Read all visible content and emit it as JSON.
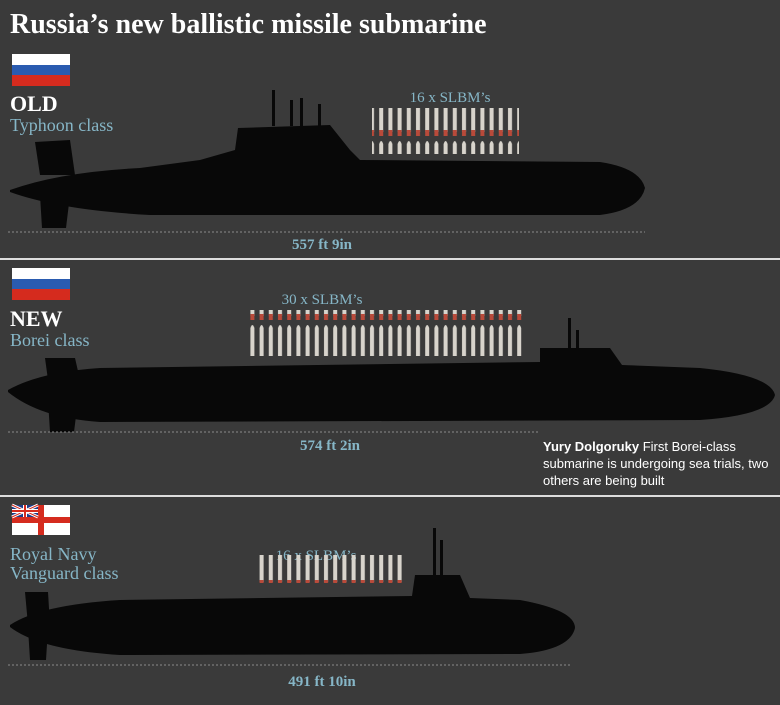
{
  "title": "Russia’s new ballistic missile submarine",
  "sections": [
    {
      "status": "OLD",
      "name": [
        "Typhoon class"
      ],
      "missiles": "16 x SLBM’s",
      "length": "557 ft 9in"
    },
    {
      "status": "NEW",
      "name": [
        "Borei class"
      ],
      "missiles": "30 x SLBM’s",
      "length": "574 ft 2in",
      "note": {
        "bold": "Yury Dolgoruky",
        "text": "First Borei-class submarine is undergoing sea trials, two others are being built"
      }
    },
    {
      "name": [
        "Royal Navy",
        "Vanguard class"
      ],
      "missiles": "16 x SLBM’s",
      "length": "491 ft 10in"
    }
  ]
}
